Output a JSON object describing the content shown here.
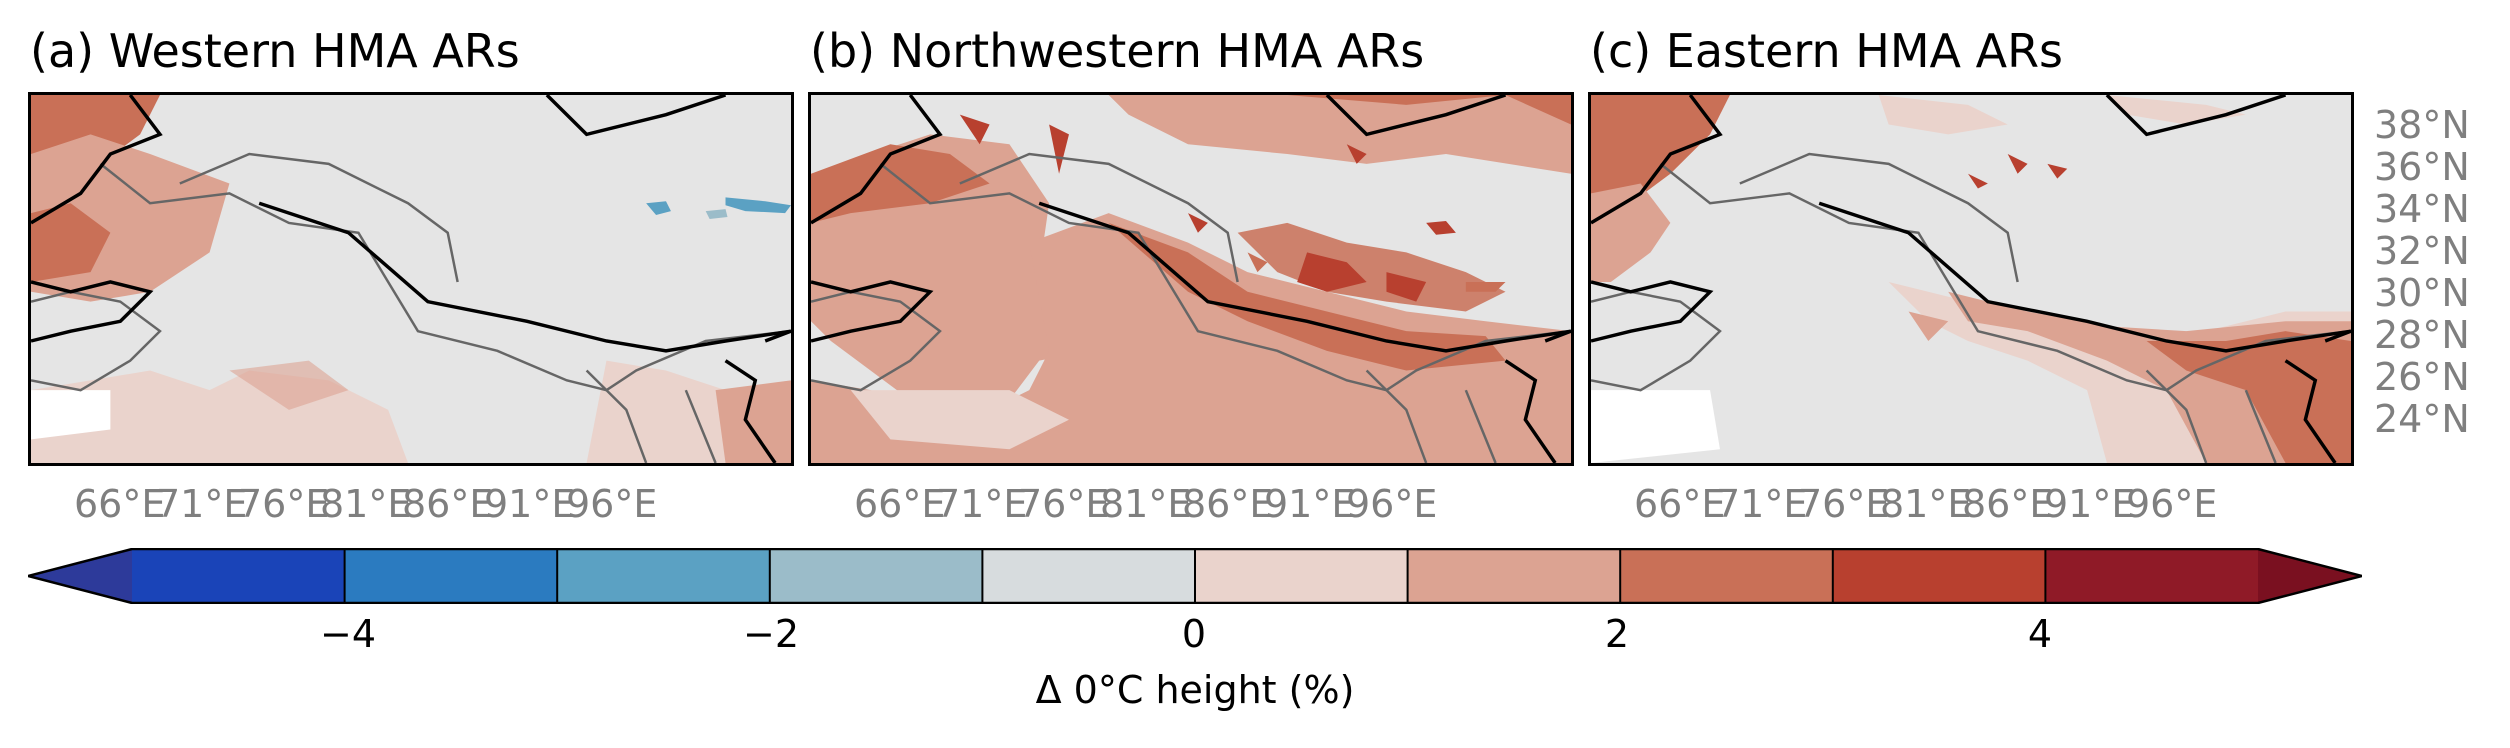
{
  "panels": [
    {
      "title": "(a) Western HMA ARs"
    },
    {
      "title": "(b) Northwestern HMA ARs"
    },
    {
      "title": "(c) Eastern HMA ARs"
    }
  ],
  "lon_ticks": [
    "66°E",
    "71°E",
    "76°E",
    "81°E",
    "86°E",
    "91°E",
    "96°E"
  ],
  "lat_ticks": [
    "38°N",
    "36°N",
    "34°N",
    "32°N",
    "30°N",
    "28°N",
    "26°N",
    "24°N"
  ],
  "colorbar": {
    "label": "Δ 0°C height (%)",
    "ticks": [
      "−4",
      "−2",
      "0",
      "2",
      "4"
    ],
    "tick_values": [
      -4,
      -2,
      0,
      2,
      4
    ],
    "bounds": [
      -5,
      -4,
      -3,
      -2,
      -1,
      0,
      1,
      2,
      3,
      4,
      5
    ],
    "extend": "both",
    "colors": [
      "#1a44b8",
      "#2b7bc0",
      "#5ba1c3",
      "#9bbcc9",
      "#d7dcde",
      "#ead3cc",
      "#dca392",
      "#c97057",
      "#b8402f",
      "#8f1a27"
    ],
    "under_color": "#2d3a9a",
    "over_color": "#7a1020"
  },
  "map_colors": {
    "land": "#e5e5e5",
    "coast": "#000000",
    "border": "#666666",
    "missing": "#ffffff"
  }
}
